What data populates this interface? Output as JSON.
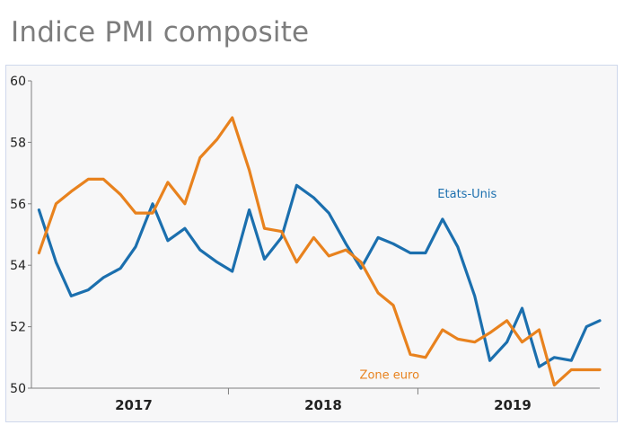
{
  "title": "Indice PMI composite",
  "chart_data": {
    "type": "line",
    "title": "Indice PMI composite",
    "xlabel": "",
    "ylabel": "",
    "ylim": [
      50,
      60
    ],
    "yticks": [
      "50",
      "52",
      "54",
      "56",
      "58",
      "60"
    ],
    "xticks": [
      {
        "label": "2017",
        "x": 2017.0
      },
      {
        "label": "2018",
        "x": 2018.0
      },
      {
        "label": "2019",
        "x": 2019.0
      }
    ],
    "year_separators": [
      2017.5,
      2018.5
    ],
    "xlim": [
      2016.46,
      2019.46
    ],
    "grid": false,
    "colors": {
      "etats_unis": "#1b6fae",
      "zone_euro": "#e8821e",
      "axis": "#7f7f7f",
      "panel_border": "#cfd8ec"
    },
    "series": [
      {
        "name": "Etats-Unis",
        "key": "etats_unis",
        "label_x": 2018.76,
        "label_y": 56.2,
        "x": [
          2016.5,
          2016.59,
          2016.67,
          2016.76,
          2016.84,
          2016.93,
          2017.01,
          2017.1,
          2017.18,
          2017.27,
          2017.35,
          2017.44,
          2017.52,
          2017.61,
          2017.69,
          2017.78,
          2017.86,
          2017.95,
          2018.03,
          2018.12,
          2018.2,
          2018.29,
          2018.37,
          2018.46,
          2018.54,
          2018.63,
          2018.71,
          2018.8,
          2018.88,
          2018.97,
          2019.05,
          2019.14,
          2019.22,
          2019.31,
          2019.39,
          2019.46
        ],
        "values": [
          55.8,
          54.1,
          53.0,
          53.2,
          53.6,
          53.9,
          54.6,
          56.0,
          54.8,
          55.2,
          54.5,
          54.1,
          53.8,
          55.8,
          54.2,
          54.9,
          56.6,
          56.2,
          55.7,
          54.7,
          53.9,
          54.9,
          54.7,
          54.4,
          54.4,
          55.5,
          54.6,
          53.0,
          50.9,
          51.5,
          52.6,
          50.7,
          51.0,
          50.9,
          52.0,
          52.2
        ]
      },
      {
        "name": "Zone euro",
        "key": "zone_euro",
        "label_x": 2018.35,
        "label_y": 50.3,
        "x": [
          2016.5,
          2016.59,
          2016.67,
          2016.76,
          2016.84,
          2016.93,
          2017.01,
          2017.1,
          2017.18,
          2017.27,
          2017.35,
          2017.44,
          2017.52,
          2017.61,
          2017.69,
          2017.78,
          2017.86,
          2017.95,
          2018.03,
          2018.12,
          2018.2,
          2018.29,
          2018.37,
          2018.46,
          2018.54,
          2018.63,
          2018.71,
          2018.8,
          2018.88,
          2018.97,
          2019.05,
          2019.14,
          2019.22,
          2019.31,
          2019.39,
          2019.46
        ],
        "values": [
          54.4,
          56.0,
          56.4,
          56.8,
          56.8,
          56.3,
          55.7,
          55.7,
          56.7,
          56.0,
          57.5,
          58.1,
          58.8,
          57.1,
          55.2,
          55.1,
          54.1,
          54.9,
          54.3,
          54.5,
          54.1,
          53.1,
          52.7,
          51.1,
          51.0,
          51.9,
          51.6,
          51.5,
          51.8,
          52.2,
          51.5,
          51.9,
          50.1,
          50.6,
          50.6,
          50.6
        ]
      }
    ]
  }
}
